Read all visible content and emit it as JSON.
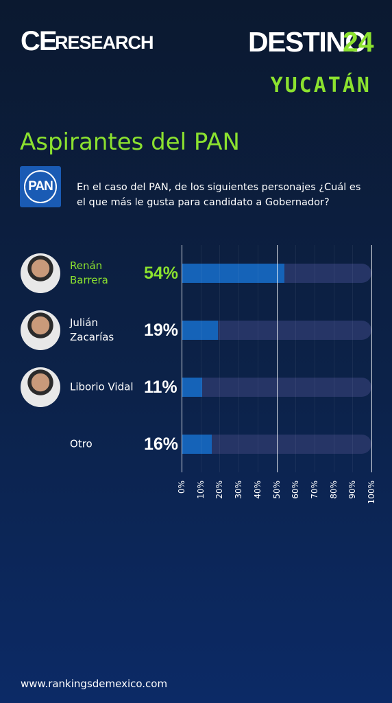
{
  "header": {
    "brand": "CE",
    "brand_sub": "RESEARCH",
    "campaign": "DESTINO",
    "campaign_number": "24",
    "region": "YUCATÁN",
    "party_logo": "PAN"
  },
  "chart_data": {
    "type": "bar",
    "orientation": "horizontal",
    "title": "Aspirantes del PAN",
    "subtitle": "En el caso del PAN, de los siguientes personajes ¿Cuál es el que más le gusta para candidato a Gobernador?",
    "categories": [
      "Renán Barrera",
      "Julián Zacarías",
      "Liborio Vidal",
      "Otro"
    ],
    "values": [
      54,
      19,
      11,
      16
    ],
    "value_labels": [
      "54%",
      "19%",
      "11%",
      "16%"
    ],
    "color": "#1563b8",
    "track_color": "#263566",
    "xlim": [
      0,
      100
    ],
    "xticks": [
      {
        "value": 0,
        "label": "0%"
      },
      {
        "value": 10,
        "label": "10%"
      },
      {
        "value": 20,
        "label": "20%"
      },
      {
        "value": 30,
        "label": "30%"
      },
      {
        "value": 40,
        "label": "40%"
      },
      {
        "value": 50,
        "label": "50%"
      },
      {
        "value": 60,
        "label": "60%"
      },
      {
        "value": 70,
        "label": "70%"
      },
      {
        "value": 80,
        "label": "80%"
      },
      {
        "value": 90,
        "label": "90%"
      },
      {
        "value": 100,
        "label": "100%"
      }
    ],
    "grid": true
  },
  "footer": {
    "url": "www.rankingsdemexico.com"
  }
}
